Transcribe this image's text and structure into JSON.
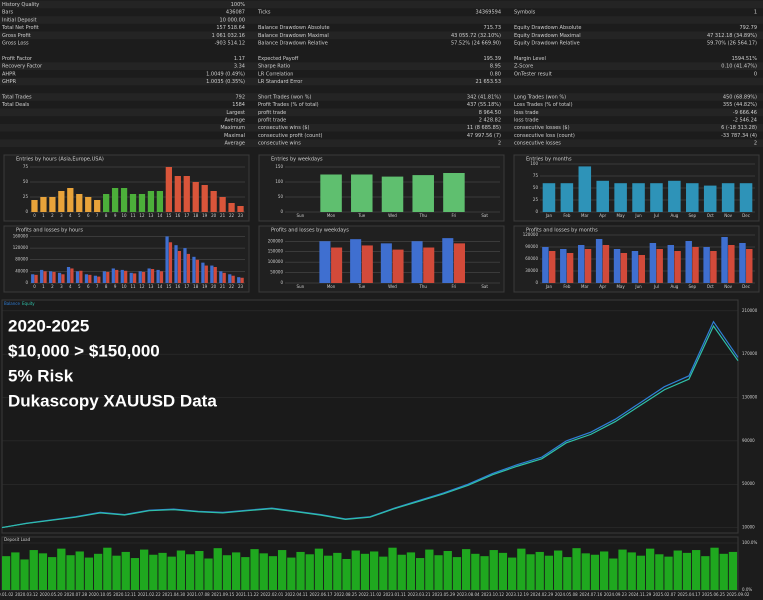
{
  "stats": [
    {
      "rows": [
        [
          {
            "label": "History Quality",
            "value": "100%"
          },
          null,
          null
        ],
        [
          {
            "label": "Bars",
            "value": "436087"
          },
          {
            "label": "Ticks",
            "value": "34369594"
          },
          {
            "label": "Symbols",
            "value": "1"
          }
        ],
        [
          {
            "label": "Initial Deposit",
            "value": "10 000.00"
          },
          null,
          null
        ],
        [
          {
            "label": "Total Net Profit",
            "value": "157 518.64"
          },
          {
            "label": "Balance Drawdown Absolute",
            "value": "715.73"
          },
          {
            "label": "Equity Drawdown Absolute",
            "value": "792.79"
          }
        ],
        [
          {
            "label": "Gross Profit",
            "value": "1 061 032.16"
          },
          {
            "label": "Balance Drawdown Maximal",
            "value": "43 055.72 (32.10%)"
          },
          {
            "label": "Equity Drawdown Maximal",
            "value": "47 312.18 (34.89%)"
          }
        ],
        [
          {
            "label": "Gross Loss",
            "value": "-903 514.12"
          },
          {
            "label": "Balance Drawdown Relative",
            "value": "57.52% (24 669.90)"
          },
          {
            "label": "Equity Drawdown Relative",
            "value": "59.70% (26 564.17)"
          }
        ]
      ]
    },
    {
      "rows": [
        [
          {
            "label": "Profit Factor",
            "value": "1.17"
          },
          {
            "label": "Expected Payoff",
            "value": "195.39"
          },
          {
            "label": "Margin Level",
            "value": "1594.51%"
          }
        ],
        [
          {
            "label": "Recovery Factor",
            "value": "3.34"
          },
          {
            "label": "Sharpe Ratio",
            "value": "8.95"
          },
          {
            "label": "Z-Score",
            "value": "0.10 (41.47%)"
          }
        ],
        [
          {
            "label": "AHPR",
            "value": "1.0049 (0.49%)"
          },
          {
            "label": "LR Correlation",
            "value": "0.80"
          },
          {
            "label": "OnTester result",
            "value": "0"
          }
        ],
        [
          {
            "label": "GHPR",
            "value": "1.0035 (0.35%)"
          },
          {
            "label": "LR Standard Error",
            "value": "21 653.53"
          },
          null
        ]
      ]
    },
    {
      "rows": [
        [
          {
            "label": "Total Trades",
            "value": "792"
          },
          {
            "label": "Short Trades (won %)",
            "value": "342 (41.81%)"
          },
          {
            "label": "Long Trades (won %)",
            "value": "450 (68.89%)"
          }
        ],
        [
          {
            "label": "Total Deals",
            "value": "1584"
          },
          {
            "label": "Profit Trades (% of total)",
            "value": "437 (55.18%)"
          },
          {
            "label": "Loss Trades (% of total)",
            "value": "355 (44.82%)"
          }
        ],
        [
          {
            "label": "Largest"
          },
          {
            "label": "profit trade",
            "value": "8 964.50"
          },
          {
            "label": "loss trade",
            "value": "-9 666.46"
          }
        ],
        [
          {
            "label": "Average"
          },
          {
            "label": "profit trade",
            "value": "2 428.82"
          },
          {
            "label": "loss trade",
            "value": "-2 546.24"
          }
        ],
        [
          {
            "label": "Maximum"
          },
          {
            "label": "consecutive wins ($)",
            "value": "11 (8 685.85)"
          },
          {
            "label": "consecutive losses ($)",
            "value": "6 (-18 313.28)"
          }
        ],
        [
          {
            "label": "Maximal"
          },
          {
            "label": "consecutive profit (count)",
            "value": "47 997.56 (7)"
          },
          {
            "label": "consecutive loss (count)",
            "value": "-33 787.34 (4)"
          }
        ],
        [
          {
            "label": "Average"
          },
          {
            "label": "consecutive wins",
            "value": "2"
          },
          {
            "label": "consecutive losses",
            "value": "2"
          }
        ]
      ]
    }
  ],
  "chart_data": [
    {
      "type": "bar",
      "title": "Entries by hours (Asia,Europe,USA)",
      "categories": [
        "0",
        "1",
        "2",
        "3",
        "4",
        "5",
        "6",
        "7",
        "8",
        "9",
        "10",
        "11",
        "12",
        "13",
        "14",
        "15",
        "16",
        "17",
        "18",
        "19",
        "20",
        "21",
        "22",
        "23"
      ],
      "values": [
        20,
        25,
        25,
        35,
        40,
        30,
        25,
        20,
        30,
        40,
        40,
        30,
        30,
        35,
        35,
        75,
        60,
        60,
        50,
        45,
        35,
        25,
        15,
        10
      ],
      "colors": [
        "#e8a33a",
        "#e8a33a",
        "#e8a33a",
        "#e8a33a",
        "#e8a33a",
        "#e8a33a",
        "#e8a33a",
        "#e8a33a",
        "#4caf3a",
        "#4caf3a",
        "#4caf3a",
        "#4caf3a",
        "#4caf3a",
        "#4caf3a",
        "#4caf3a",
        "#d9553a",
        "#d9553a",
        "#d9553a",
        "#d9553a",
        "#d9553a",
        "#d9553a",
        "#d9553a",
        "#d9553a",
        "#d9553a"
      ],
      "ylim": [
        0,
        80
      ],
      "yticks": [
        0,
        25,
        50,
        75
      ]
    },
    {
      "type": "bar",
      "title": "Entries by weekdays",
      "categories": [
        "Sun",
        "Mon",
        "Tue",
        "Wed",
        "Thu",
        "Fri",
        "Sat"
      ],
      "values": [
        null,
        125,
        125,
        118,
        123,
        130,
        null
      ],
      "color": "#5fbf6f",
      "ylim": [
        0,
        160
      ],
      "yticks": [
        0,
        50,
        100,
        150
      ]
    },
    {
      "type": "bar",
      "title": "Entries by months",
      "categories": [
        "Jan",
        "Feb",
        "Mar",
        "Apr",
        "May",
        "Jun",
        "Jul",
        "Aug",
        "Sep",
        "Oct",
        "Nov",
        "Dec"
      ],
      "values": [
        60,
        60,
        95,
        65,
        60,
        60,
        60,
        65,
        60,
        55,
        60,
        60
      ],
      "color": "#2e93b8",
      "ylim": [
        0,
        100
      ],
      "yticks": [
        0,
        25,
        50,
        75,
        100
      ]
    },
    {
      "type": "groupbar",
      "title": "Profits and losses by hours",
      "categories": [
        "0",
        "1",
        "2",
        "3",
        "4",
        "5",
        "6",
        "7",
        "8",
        "9",
        "10",
        "11",
        "12",
        "13",
        "14",
        "15",
        "16",
        "17",
        "18",
        "19",
        "20",
        "21",
        "22",
        "23"
      ],
      "series": [
        {
          "name": "Profit",
          "color": "#3f6fd0",
          "values": [
            30000,
            45000,
            40000,
            35000,
            55000,
            40000,
            30000,
            25000,
            40000,
            50000,
            45000,
            35000,
            40000,
            50000,
            45000,
            160000,
            130000,
            120000,
            90000,
            70000,
            60000,
            40000,
            30000,
            20000
          ]
        },
        {
          "name": "Loss",
          "color": "#d24a3a",
          "values": [
            28000,
            40000,
            38000,
            30000,
            50000,
            42000,
            28000,
            22000,
            38000,
            45000,
            42000,
            33000,
            38000,
            48000,
            40000,
            140000,
            110000,
            100000,
            80000,
            60000,
            55000,
            35000,
            25000,
            18000
          ]
        }
      ],
      "ylim": [
        0,
        165000
      ],
      "yticks": [
        0,
        40000,
        80000,
        120000,
        160000
      ]
    },
    {
      "type": "groupbar",
      "title": "Profits and losses by weekdays",
      "categories": [
        "Sun",
        "Mon",
        "Tue",
        "Wed",
        "Thu",
        "Fri",
        "Sat"
      ],
      "series": [
        {
          "name": "Profit",
          "color": "#3f6fd0",
          "values": [
            null,
            200000,
            210000,
            190000,
            200000,
            215000,
            null
          ]
        },
        {
          "name": "Loss",
          "color": "#d24a3a",
          "values": [
            null,
            170000,
            180000,
            160000,
            170000,
            190000,
            null
          ]
        }
      ],
      "ylim": [
        0,
        230000
      ],
      "yticks": [
        0,
        50000,
        100000,
        150000,
        200000
      ]
    },
    {
      "type": "groupbar",
      "title": "Profits and losses by months",
      "categories": [
        "Jan",
        "Feb",
        "Mar",
        "Apr",
        "May",
        "Jun",
        "Jul",
        "Aug",
        "Sep",
        "Oct",
        "Nov",
        "Dec"
      ],
      "series": [
        {
          "name": "Profit",
          "color": "#3f6fd0",
          "values": [
            90000,
            85000,
            95000,
            110000,
            85000,
            80000,
            100000,
            95000,
            105000,
            90000,
            115000,
            100000
          ]
        },
        {
          "name": "Loss",
          "color": "#d24a3a",
          "values": [
            80000,
            75000,
            85000,
            95000,
            75000,
            70000,
            85000,
            80000,
            90000,
            80000,
            95000,
            85000
          ]
        }
      ],
      "ylim": [
        0,
        120000
      ],
      "yticks": [
        0,
        30000,
        60000,
        90000,
        120000
      ]
    },
    {
      "type": "line",
      "annotations": [
        "2020-2025",
        "$10,000 > $150,000",
        "5% Risk",
        "Dukascopy XAUUSD Data"
      ],
      "categories": [
        "2020.01.02",
        "2020.03.12",
        "2020.05.20",
        "2020.07.28",
        "2020.10.05",
        "2020.12.11",
        "2021.02.22",
        "2021.04.30",
        "2021.07.08",
        "2021.09.15",
        "2021.11.22",
        "2022.02.01",
        "2022.04.11",
        "2022.06.17",
        "2022.08.25",
        "2022.11.02",
        "2023.01.11",
        "2023.03.21",
        "2023.05.29",
        "2023.08.04",
        "2023.10.12",
        "2023.12.19",
        "2024.02.29",
        "2024.05.08",
        "2024.07.16",
        "2024.09.23",
        "2024.11.29",
        "2025.02.07",
        "2025.04.17",
        "2025.06.25",
        "2025.09.02"
      ],
      "series": [
        {
          "name": "Balance",
          "color": "#2f7fd8",
          "values": [
            10000,
            14000,
            17000,
            20000,
            24000,
            22000,
            26000,
            27000,
            25000,
            24000,
            26000,
            28000,
            25000,
            22000,
            18000,
            20000,
            28000,
            35000,
            42000,
            50000,
            60000,
            68000,
            75000,
            90000,
            98000,
            110000,
            125000,
            140000,
            150000,
            200000,
            167000
          ]
        },
        {
          "name": "Equity",
          "color": "#2fc0a8",
          "values": [
            10000,
            13800,
            16700,
            19600,
            23500,
            21600,
            25600,
            26500,
            24600,
            23500,
            25600,
            27500,
            24600,
            21500,
            17600,
            19600,
            27500,
            34300,
            41200,
            49000,
            58800,
            66600,
            73500,
            88200,
            96000,
            107800,
            122500,
            137200,
            147000,
            196000,
            164000
          ]
        }
      ],
      "ylim": [
        5000,
        220000
      ],
      "yticks": [
        10000,
        50000,
        90000,
        130000,
        170000,
        210000
      ]
    },
    {
      "type": "load",
      "title": "Deposit Load",
      "color": "#1fa81f",
      "values": [
        72,
        80,
        65,
        85,
        78,
        70,
        88,
        74,
        82,
        69,
        77,
        90,
        73,
        81,
        68,
        86,
        75,
        79,
        71,
        84,
        76,
        83,
        67,
        89,
        74,
        80,
        70,
        87,
        78,
        72,
        85,
        69,
        81,
        76,
        88,
        73,
        79,
        66,
        84,
        77,
        82,
        71,
        90,
        75,
        80,
        68,
        86,
        74,
        83,
        70,
        87,
        77,
        72,
        85,
        79,
        69,
        88,
        76,
        81,
        73,
        84,
        70,
        89,
        78,
        75,
        82,
        67,
        86,
        80,
        73,
        88,
        76,
        71,
        84,
        79,
        85,
        72,
        90,
        77,
        81
      ],
      "ylim": [
        0,
        100
      ],
      "yticks": [
        {
          "value": 0,
          "label": "0.0%"
        },
        {
          "value": 100,
          "label": "100.0%"
        }
      ]
    }
  ]
}
